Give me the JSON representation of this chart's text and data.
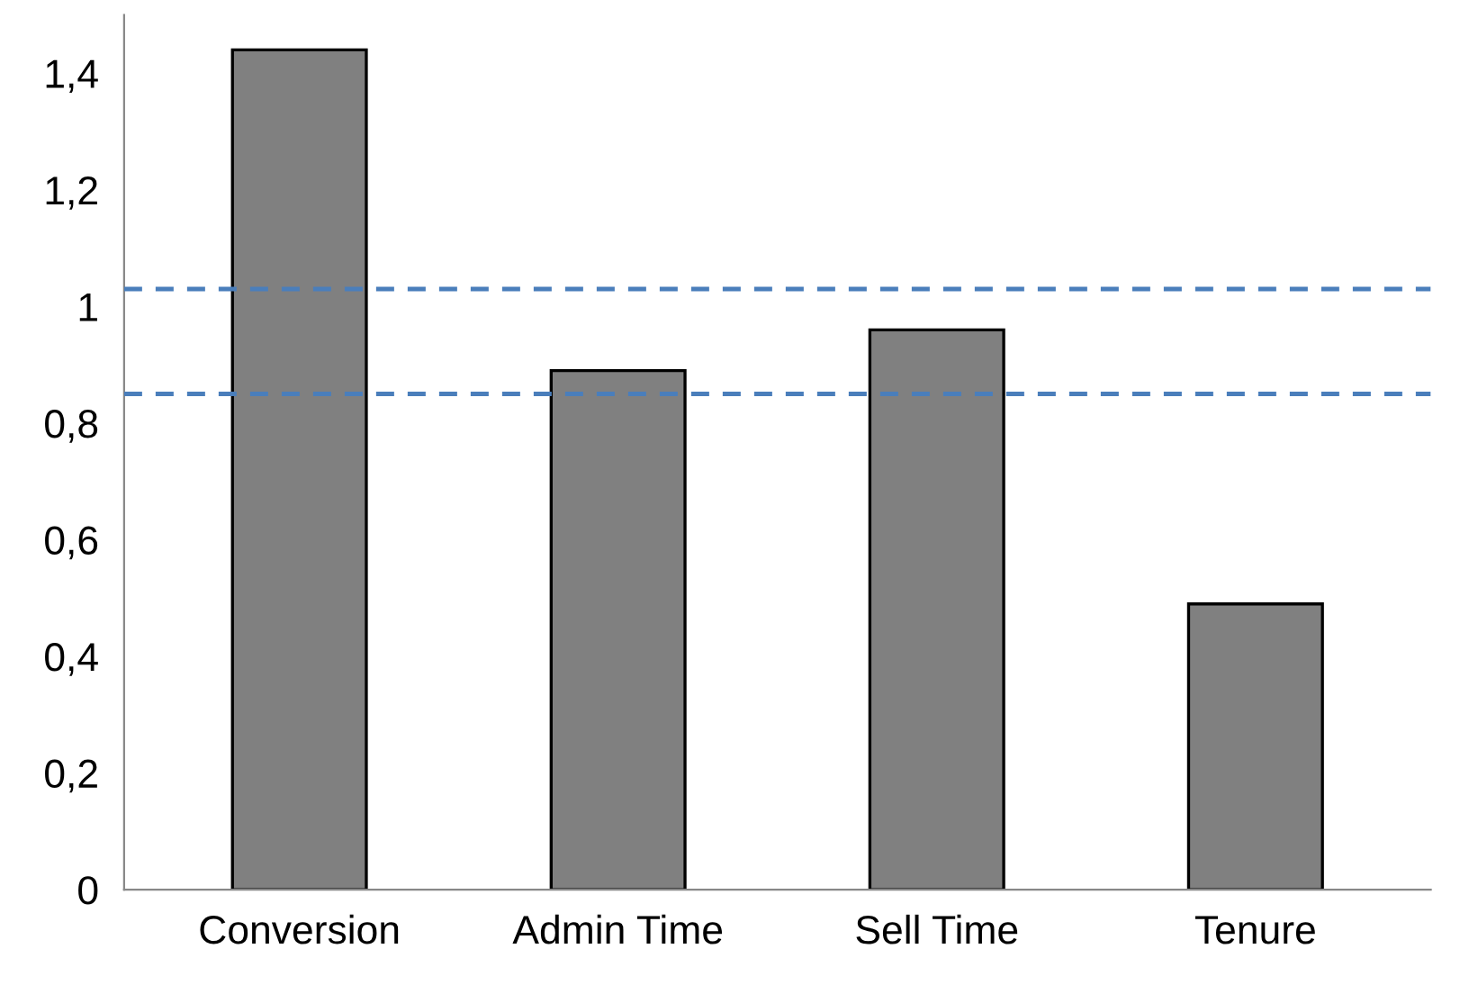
{
  "chart_data": {
    "type": "bar",
    "categories": [
      "Conversion",
      "Admin Time",
      "Sell Time",
      "Tenure"
    ],
    "values": [
      1.44,
      0.89,
      0.96,
      0.49
    ],
    "color": "#808080",
    "ylim": [
      0,
      1.5
    ],
    "yticks": [
      0,
      {
        "value": 0.2,
        "label": "0,2"
      },
      {
        "value": 0.4,
        "label": "0,4"
      },
      {
        "value": 0.6,
        "label": "0,6"
      },
      {
        "value": 0.8,
        "label": "0,8"
      },
      1,
      {
        "value": 1.2,
        "label": "1,2"
      },
      {
        "value": 1.4,
        "label": "1,4"
      }
    ],
    "ref_lines": [
      {
        "axis": "y",
        "value": 1.03,
        "color": "#4a7ebb",
        "line_style": "dashed"
      },
      {
        "axis": "y",
        "value": 0.85,
        "color": "#4a7ebb",
        "line_style": "dashed"
      }
    ],
    "grid": false
  }
}
